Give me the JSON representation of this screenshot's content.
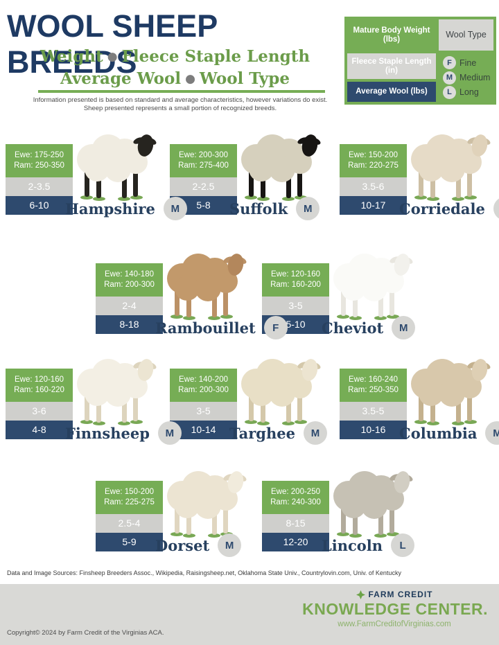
{
  "title": "WOOL SHEEP BREEDS",
  "subtitle": {
    "bullet": "●",
    "line1_a": "Weight",
    "line1_b": "Fleece Staple Length",
    "line2_a": "Average Wool",
    "line2_b": "Wool Type"
  },
  "disclaimer": "Information presented is based on standard and average characteristics, however variations do exist.  Sheep presented represents a small portion of recognized breeds.",
  "legend": {
    "weight_label": "Mature Body Weight (lbs)",
    "staple_label": "Fleece Staple Length (in)",
    "wool_label": "Average Wool (lbs)",
    "wool_type_label": "Wool Type",
    "types": [
      {
        "code": "F",
        "label": "Fine"
      },
      {
        "code": "M",
        "label": "Medium"
      },
      {
        "code": "L",
        "label": "Long"
      }
    ]
  },
  "breeds": [
    {
      "name": "Hampshire",
      "ewe": "Ewe: 175-250",
      "ram": "Ram: 250-350",
      "staple": "2-3.5",
      "wool": "6-10",
      "type": "M",
      "colors": {
        "body": "#f0ece1",
        "face": "#26241f",
        "legs": "#26241f"
      }
    },
    {
      "name": "Suffolk",
      "ewe": "Ewe: 200-300",
      "ram": "Ram: 275-400",
      "staple": "2-2.5",
      "wool": "5-8",
      "type": "M",
      "colors": {
        "body": "#d6d0bd",
        "face": "#171513",
        "legs": "#171513"
      }
    },
    {
      "name": "Corriedale",
      "ewe": "Ewe: 150-200",
      "ram": "Ram: 220-275",
      "staple": "3.5-6",
      "wool": "10-17",
      "type": "M",
      "colors": {
        "body": "#e6dbc7",
        "face": "#e0d2ba",
        "legs": "#cdbfa4"
      }
    },
    {
      "name": "Rambouillet",
      "ewe": "Ewe: 140-180",
      "ram": "Ram: 200-300",
      "staple": "2-4",
      "wool": "8-18",
      "type": "F",
      "colors": {
        "body": "#c2996b",
        "face": "#b3875c",
        "legs": "#bb9166"
      }
    },
    {
      "name": "Cheviot",
      "ewe": "Ewe: 120-160",
      "ram": "Ram: 160-200",
      "staple": "3-5",
      "wool": "5-10",
      "type": "M",
      "colors": {
        "body": "#fafaf7",
        "face": "#f2f1ec",
        "legs": "#e8e6df"
      }
    },
    {
      "name": "Finnsheep",
      "ewe": "Ewe: 120-160",
      "ram": "Ram: 160-220",
      "staple": "3-6",
      "wool": "4-8",
      "type": "M",
      "colors": {
        "body": "#f3efe4",
        "face": "#ece5d2",
        "legs": "#ddd4bd"
      }
    },
    {
      "name": "Targhee",
      "ewe": "Ewe: 140-200",
      "ram": "Ram: 200-300",
      "staple": "3-5",
      "wool": "10-14",
      "type": "M",
      "colors": {
        "body": "#e8dfc6",
        "face": "#ece4d0",
        "legs": "#d4c8aa"
      }
    },
    {
      "name": "Columbia",
      "ewe": "Ewe: 160-240",
      "ram": "Ram: 250-350",
      "staple": "3.5-5",
      "wool": "10-16",
      "type": "M",
      "colors": {
        "body": "#d8c8ab",
        "face": "#decfb4",
        "legs": "#c4b18e"
      }
    },
    {
      "name": "Dorset",
      "ewe": "Ewe: 150-200",
      "ram": "Ram: 225-275",
      "staple": "2.5-4",
      "wool": "5-9",
      "type": "M",
      "colors": {
        "body": "#ece4d2",
        "face": "#f1ebdc",
        "legs": "#e0d6c0"
      }
    },
    {
      "name": "Lincoln",
      "ewe": "Ewe: 200-250",
      "ram": "Ram: 240-300",
      "staple": "8-15",
      "wool": "12-20",
      "type": "L",
      "colors": {
        "body": "#c6c1b4",
        "face": "#d2cec3",
        "legs": "#b2ab9c"
      }
    }
  ],
  "sources": "Data and Image Sources: Finsheep Breeders Assoc., Wikipedia, Raisingsheep.net, Oklahoma State Univ., Countrylovin.com, Univ. of Kentucky",
  "footer": {
    "brand_top": "Farm Credit",
    "brand_main": "Knowledge Center.",
    "website": "www.FarmCreditofVirginias.com",
    "copyright": "Copyright© 2024 by Farm Credit of the Virginias ACA."
  },
  "colors": {
    "title_navy": "#1e3a63",
    "band_navy": "#2e4a6e",
    "green": "#76ad55",
    "subtitle_green": "#6b9c4a",
    "gray_band": "#cfcfcc",
    "badge_gray": "#d6d6d3",
    "footer_gray": "#d9d9d6",
    "brand_green": "#7aa851"
  }
}
